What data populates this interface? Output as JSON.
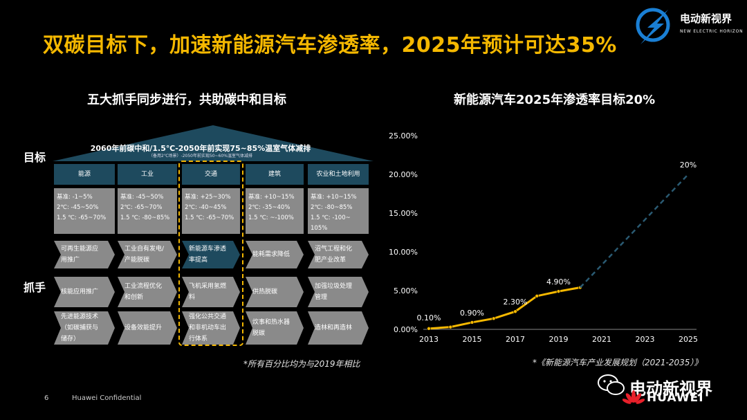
{
  "header": {
    "title": "双碳目标下，加速新能源汽车渗透率，2025年预计可达35%",
    "logo_text": "电动新视界",
    "logo_subtext": "NEW ELECTRIC HORIZON"
  },
  "left_panel": {
    "title": "五大抓手同步进行，共助碳中和目标",
    "label_goal": "目标",
    "label_levers": "抓手",
    "roof_text": "2060年前碳中和/1.5℃-2050年前实现75~85%温室气体减排",
    "roof_subtext": "（备用2℃场景）-2050年前实现50~60%温室气体减排",
    "sectors": [
      {
        "name": "能源",
        "baseline": [
          "基准: -1~5%",
          "2℃: -45~50%",
          "1.5 ℃: -65~70%"
        ],
        "levers": [
          "可再生能源应\n用推广",
          "核能应用推广",
          "先进能源技术\n（如碳捕获与\n储存）"
        ]
      },
      {
        "name": "工业",
        "baseline": [
          "基准: -45~50%",
          "2℃: -65~70%",
          "1.5 ℃: -80~85%"
        ],
        "levers": [
          "工业自有发电/\n产能脱碳",
          "工业流程优化\n和创新",
          "设备效能提升"
        ]
      },
      {
        "name": "交通",
        "baseline": [
          "基准: +25~30%",
          "2℃: -40~45%",
          "1.5 ℃: -65~70%"
        ],
        "levers": [
          "新能源车渗透\n率提高",
          "飞机采用氢燃\n料",
          "强化公共交通\n和非机动车出\n行体系"
        ]
      },
      {
        "name": "建筑",
        "baseline": [
          "基准: +10~15%",
          "2℃: -35~40%",
          "1.5 ℃: ~-100%"
        ],
        "levers": [
          "能耗需求降低",
          "供热脱碳",
          "炊事和热水器\n脱碳"
        ]
      },
      {
        "name": "农业和土地利用",
        "baseline": [
          "基准: +10~15%",
          "2℃: -80~85%",
          "1.5 ℃: -100~",
          "105%"
        ],
        "levers": [
          "沼气工程和化\n肥产业改革",
          "加强垃圾处理\n管理",
          "造林和再造林"
        ]
      }
    ],
    "footnote": "*所有百分比均为与2019年相比"
  },
  "right_panel": {
    "title": "新能源汽车2025年渗透率目标20%",
    "footnote": "*《新能源汽车产业发展规划（2021-2035）》"
  },
  "footer": {
    "page_number": "6",
    "confidential": "Huawei Confidential",
    "watermark": "电动新视界",
    "brand": "HUAWEI"
  },
  "colors": {
    "accent": "#f5b800",
    "dark_teal": "#1e4a5e",
    "gray_box": "#8a8a8a",
    "projection_line": "#2a5a72"
  },
  "chart_data": {
    "type": "line",
    "title": "新能源汽车2025年渗透率目标20%",
    "xlabel": "",
    "ylabel": "",
    "x_ticks": [
      "2013",
      "2015",
      "2017",
      "2019",
      "2021",
      "2023",
      "2025"
    ],
    "y_ticks": [
      "0.00%",
      "5.00%",
      "10.00%",
      "15.00%",
      "20.00%",
      "25.00%"
    ],
    "xlim": [
      2013,
      2025
    ],
    "ylim": [
      0,
      25
    ],
    "grid": false,
    "series": [
      {
        "style": "solid",
        "color": "#f5b800",
        "points": [
          {
            "x": 2013,
            "y": 0.1,
            "label": "0.10%"
          },
          {
            "x": 2014,
            "y": 0.3
          },
          {
            "x": 2015,
            "y": 0.9,
            "label": "0.90%"
          },
          {
            "x": 2016,
            "y": 1.4
          },
          {
            "x": 2017,
            "y": 2.3,
            "label": "2.30%"
          },
          {
            "x": 2018,
            "y": 4.3
          },
          {
            "x": 2019,
            "y": 4.9,
            "label": "4.90%"
          },
          {
            "x": 2020,
            "y": 5.4
          }
        ]
      },
      {
        "style": "dashed",
        "color": "#2a5a72",
        "points": [
          {
            "x": 2020,
            "y": 5.4
          },
          {
            "x": 2025,
            "y": 20,
            "label": "20%"
          }
        ]
      }
    ]
  }
}
